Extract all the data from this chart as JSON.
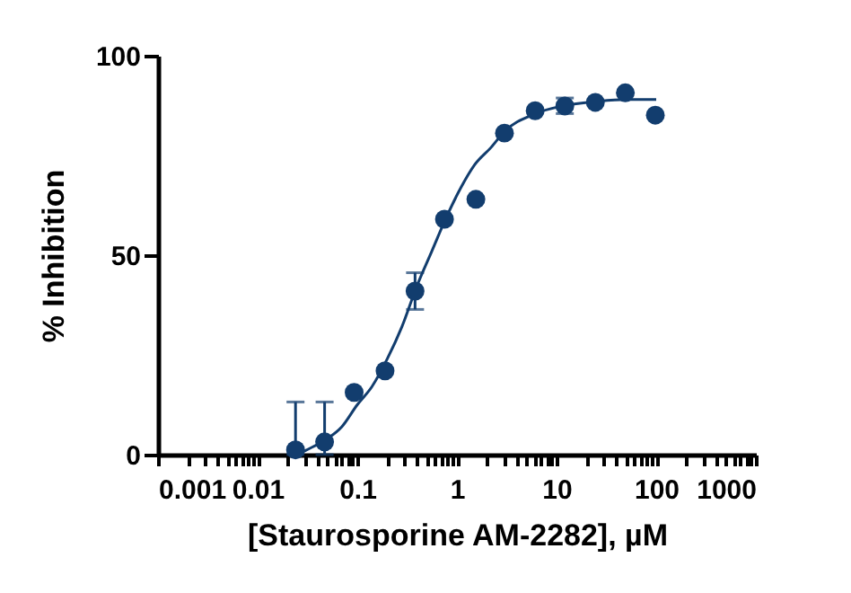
{
  "chart_data": {
    "type": "scatter",
    "xlabel": "[Staurosporine AM-2282], µM",
    "ylabel": "% Inhibition",
    "log": "x",
    "marker": "circle",
    "grid": false,
    "xlim": [
      0.001,
      1000
    ],
    "ylim": [
      0,
      100
    ],
    "yticks": [
      0,
      50,
      100
    ],
    "xticks": [
      0.001,
      {
        "value": 0.002,
        "label": null
      },
      {
        "value": 0.003,
        "label": null
      },
      {
        "value": 0.004,
        "label": null
      },
      {
        "value": 0.005,
        "label": null
      },
      {
        "value": 0.006,
        "label": null
      },
      {
        "value": 0.007,
        "label": null
      },
      {
        "value": 0.008,
        "label": null
      },
      {
        "value": 0.009,
        "label": null
      },
      0.01,
      {
        "value": 0.02,
        "label": null
      },
      {
        "value": 0.03,
        "label": null
      },
      {
        "value": 0.04,
        "label": null
      },
      {
        "value": 0.05,
        "label": null
      },
      {
        "value": 0.06,
        "label": null
      },
      {
        "value": 0.07,
        "label": null
      },
      {
        "value": 0.08,
        "label": null
      },
      {
        "value": 0.09,
        "label": null
      },
      0.1,
      {
        "value": 0.2,
        "label": null
      },
      {
        "value": 0.3,
        "label": null
      },
      {
        "value": 0.4,
        "label": null
      },
      {
        "value": 0.5,
        "label": null
      },
      {
        "value": 0.6,
        "label": null
      },
      {
        "value": 0.7,
        "label": null
      },
      {
        "value": 0.8,
        "label": null
      },
      {
        "value": 0.9,
        "label": null
      },
      1,
      {
        "value": 2,
        "label": null
      },
      {
        "value": 3,
        "label": null
      },
      {
        "value": 4,
        "label": null
      },
      {
        "value": 5,
        "label": null
      },
      {
        "value": 6,
        "label": null
      },
      {
        "value": 7,
        "label": null
      },
      {
        "value": 8,
        "label": null
      },
      {
        "value": 9,
        "label": null
      },
      10,
      {
        "value": 20,
        "label": null
      },
      {
        "value": 30,
        "label": null
      },
      {
        "value": 40,
        "label": null
      },
      {
        "value": 50,
        "label": null
      },
      {
        "value": 60,
        "label": null
      },
      {
        "value": 70,
        "label": null
      },
      {
        "value": 80,
        "label": null
      },
      {
        "value": 90,
        "label": null
      },
      100,
      {
        "value": 200,
        "label": null
      },
      {
        "value": 300,
        "label": null
      },
      {
        "value": 400,
        "label": null
      },
      {
        "value": 500,
        "label": null
      },
      {
        "value": 600,
        "label": null
      },
      {
        "value": 700,
        "label": null
      },
      {
        "value": 800,
        "label": null
      },
      {
        "value": 900,
        "label": null
      },
      1000
    ],
    "series": [
      {
        "color": "#123d6e",
        "x": [
          0.024,
          0.047,
          0.093,
          0.19,
          0.38,
          0.75,
          1.55,
          3.0,
          6.1,
          12.1,
          24.5,
          49,
          98
        ],
        "values": [
          1.2,
          3.2,
          15.6,
          21,
          41,
          59,
          64,
          80.6,
          86.2,
          87.4,
          88.3,
          90.7,
          85.1
        ],
        "errors": [
          [
            0,
            13.2
          ],
          [
            0,
            13.2
          ],
          null,
          null,
          [
            36.4,
            45.6
          ],
          null,
          null,
          null,
          null,
          [
            85.5,
            89.4
          ],
          null,
          null,
          null
        ]
      },
      {
        "type": "line",
        "marker": "none",
        "color": "#123d6e",
        "x": [
          0.025,
          0.03,
          0.05,
          0.07,
          0.1,
          0.14,
          0.2,
          0.28,
          0.4,
          0.56,
          0.8,
          1.1,
          1.5,
          2.2,
          3,
          6,
          12,
          25,
          50,
          100
        ],
        "values": [
          0,
          1,
          4,
          7,
          12.5,
          17,
          24,
          32,
          42.5,
          51,
          60,
          67,
          72.6,
          77,
          81,
          85.4,
          87.5,
          88.5,
          89,
          89
        ]
      }
    ]
  }
}
